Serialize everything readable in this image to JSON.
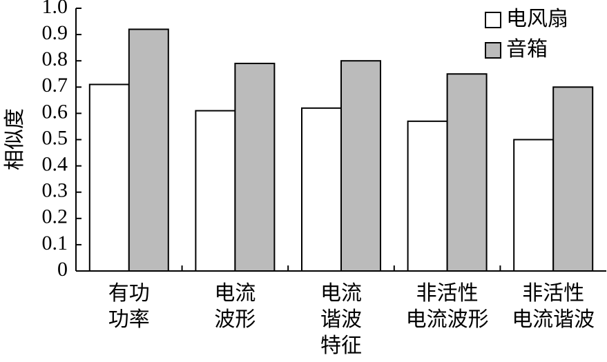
{
  "chart_data": {
    "type": "bar",
    "y_label": "相似度",
    "categories": [
      [
        "有功",
        "功率"
      ],
      [
        "电流",
        "波形"
      ],
      [
        "电流",
        "谐波",
        "特征"
      ],
      [
        "非活性",
        "电流波形"
      ],
      [
        "非活性",
        "电流谐波"
      ]
    ],
    "series": [
      {
        "name": "电风扇",
        "color": "#ffffff",
        "values": [
          0.71,
          0.61,
          0.62,
          0.57,
          0.5
        ]
      },
      {
        "name": "音箱",
        "color": "#bbbbbb",
        "values": [
          0.92,
          0.79,
          0.8,
          0.75,
          0.7
        ]
      }
    ],
    "ylim": [
      0,
      1
    ],
    "yticks": [
      0,
      0.1,
      0.2,
      0.3,
      0.4,
      0.5,
      0.6,
      0.7,
      0.8,
      0.9,
      {
        "value": 1,
        "label": "1.0"
      }
    ],
    "legend": "upper right"
  }
}
